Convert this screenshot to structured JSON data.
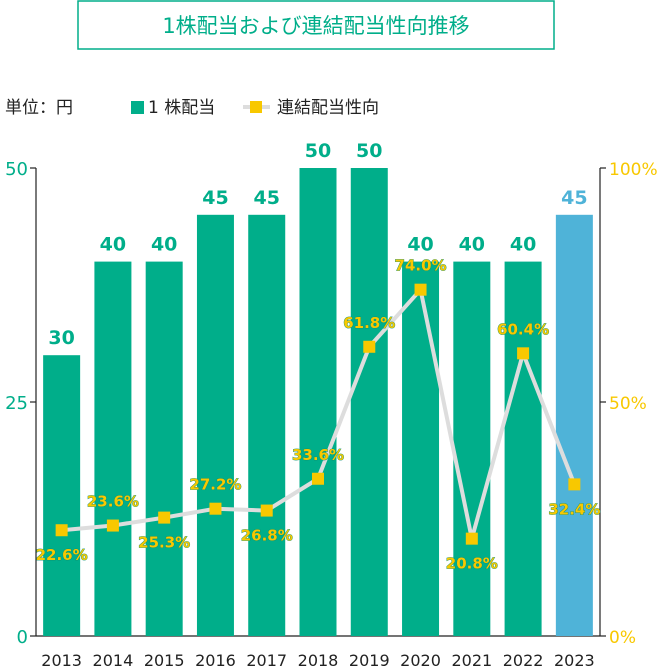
{
  "chart_data": {
    "type": "bar",
    "title": "1株配当および連結配当性向推移",
    "unit_label": "単位：円",
    "categories": [
      "2013",
      "2014",
      "2015",
      "2016",
      "2017",
      "2018",
      "2019",
      "2020",
      "2021",
      "2022",
      "2023"
    ],
    "series": [
      {
        "name": "1 株配当",
        "kind": "bar",
        "axis": "left",
        "values": [
          30,
          40,
          40,
          45,
          45,
          50,
          50,
          40,
          40,
          40,
          45
        ],
        "labels": [
          "30",
          "40",
          "40",
          "45",
          "45",
          "50",
          "50",
          "40",
          "40",
          "40",
          "45"
        ],
        "color": "#00ae8a",
        "highlight_index": 10,
        "highlight_color": "#4fb3d8"
      },
      {
        "name": "連結配当性向",
        "kind": "line",
        "axis": "right",
        "values": [
          22.6,
          23.6,
          25.3,
          27.2,
          26.8,
          33.6,
          61.8,
          74.0,
          20.8,
          60.4,
          32.4
        ],
        "labels": [
          "22.6%",
          "23.6%",
          "25.3%",
          "27.2%",
          "26.8%",
          "33.6%",
          "61.8%",
          "74.0%",
          "20.8%",
          "60.4%",
          "32.4%"
        ],
        "marker_color": "#f8c800",
        "line_color": "#dddddd"
      }
    ],
    "y_left": {
      "range": [
        0,
        50
      ],
      "ticks": [
        "0",
        "25",
        "50"
      ]
    },
    "y_right": {
      "range": [
        0,
        100
      ],
      "ticks": [
        "0%",
        "50%",
        "100%"
      ],
      "color": "#f8c800"
    },
    "legend": "top-left",
    "grid": false
  },
  "colors": {
    "accent": "#00ae8a",
    "title_border": "#00ae8a",
    "title_text": "#00ae8a",
    "right_axis_text": "#f8c800",
    "label_green": "#00ae8a",
    "pct_label_fill": "#f8c800",
    "pct_label_outline": "#0a8f6f"
  }
}
